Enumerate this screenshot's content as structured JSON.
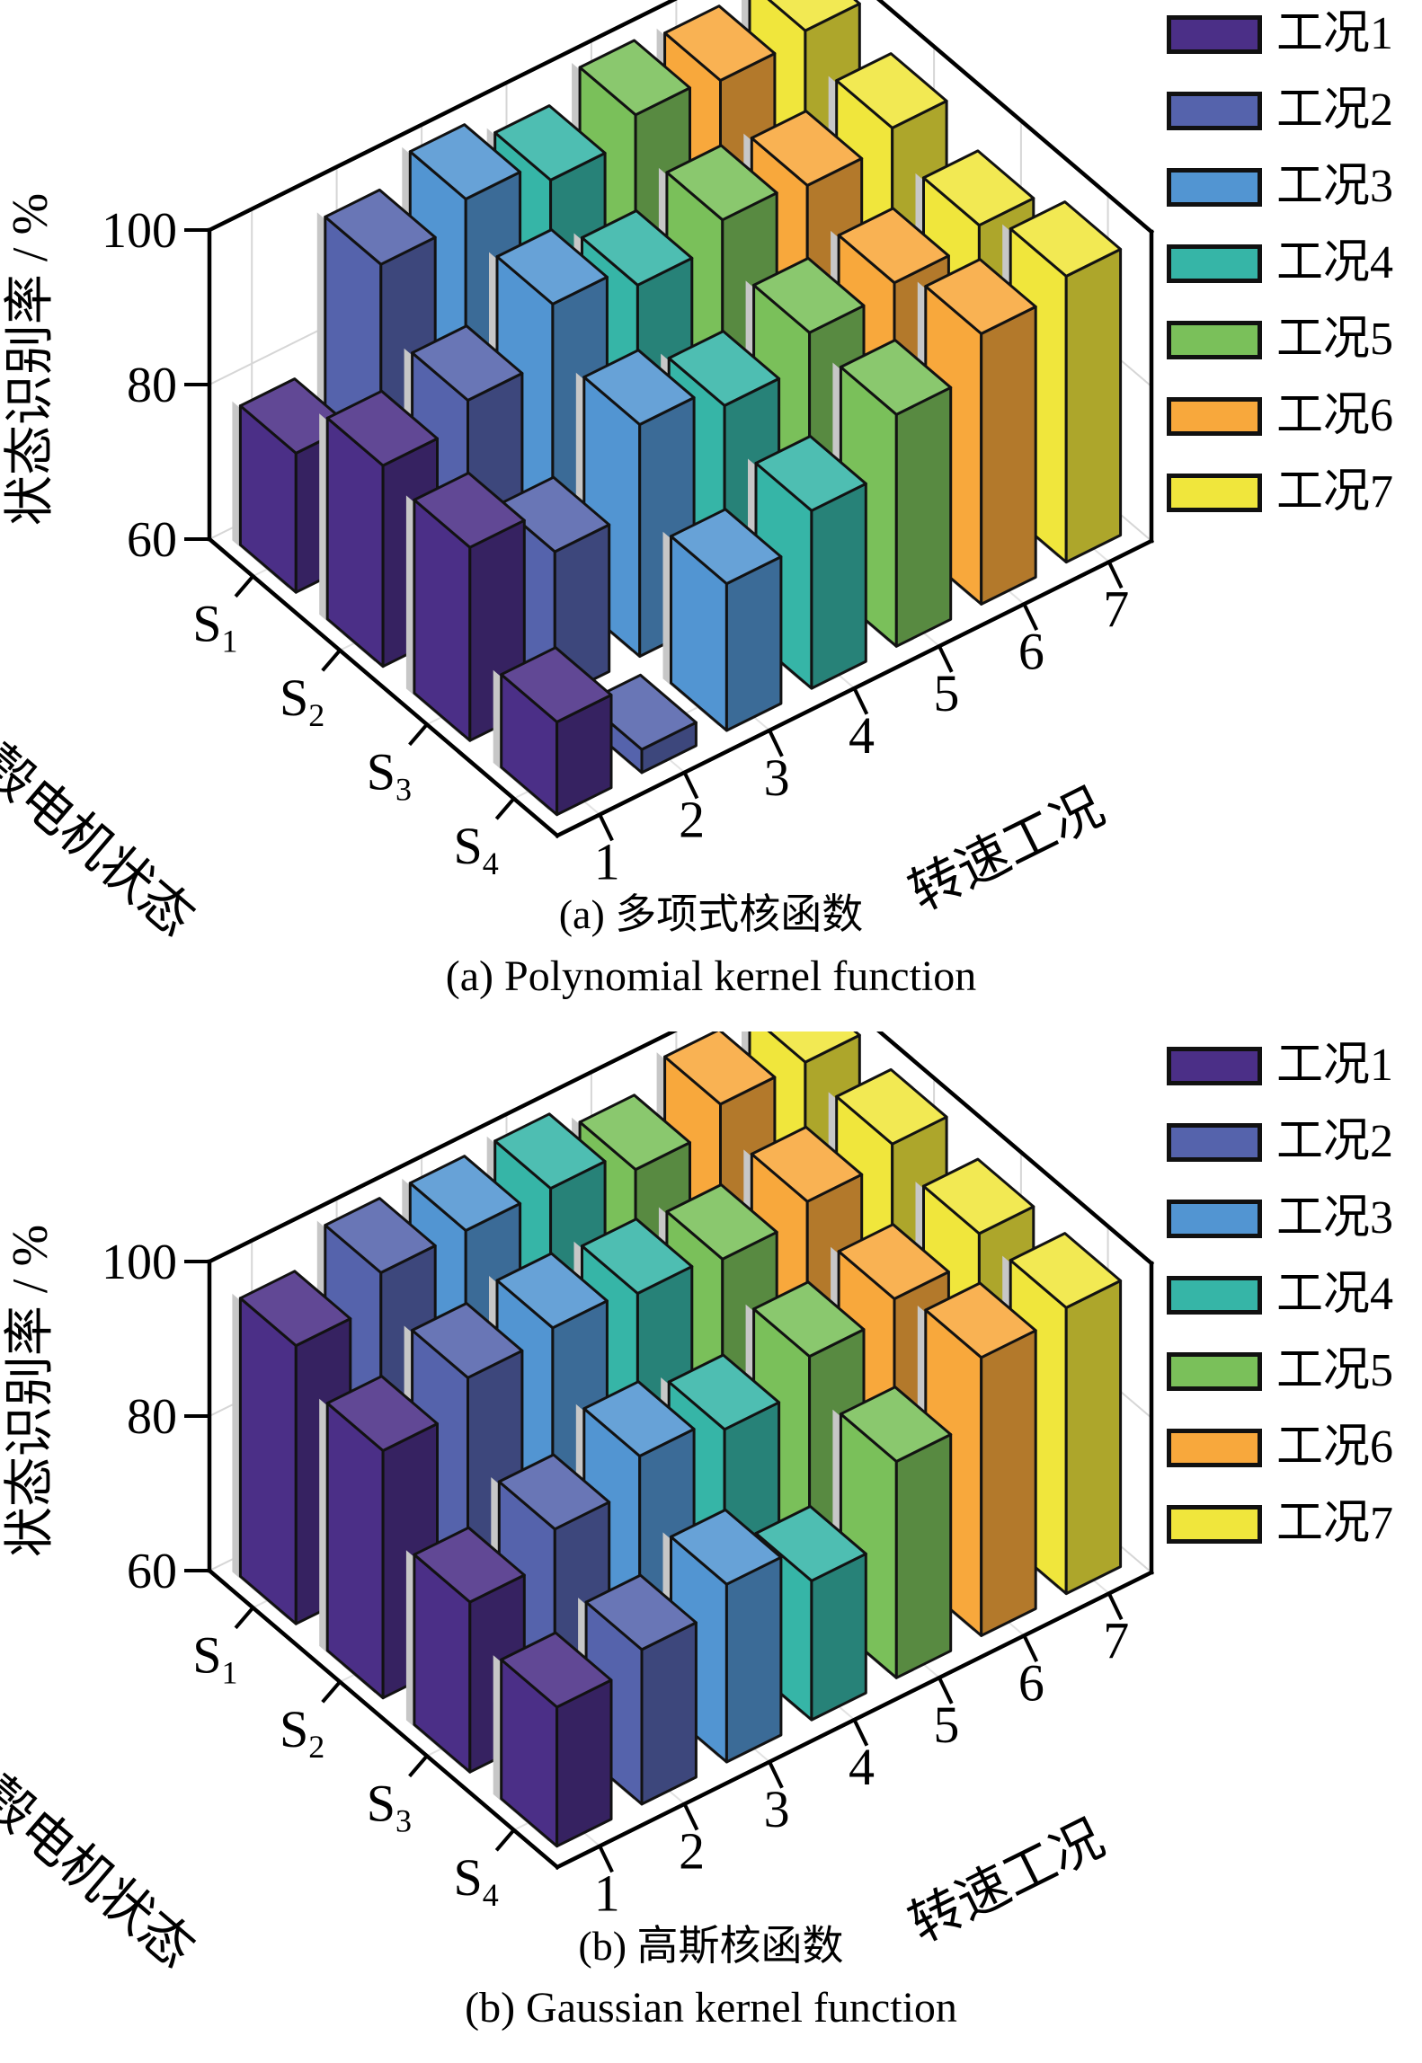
{
  "chart_data": [
    {
      "type": "bar3d",
      "caption_zh": "(a) 多项式核函数",
      "caption_en": "(a)  Polynomial kernel function",
      "zlabel": "状态识别率 / %",
      "zlim": [
        60,
        100
      ],
      "zticks": [
        "60",
        "80",
        "100"
      ],
      "xlabel": "转速工况",
      "xticks": [
        "1",
        "2",
        "3",
        "4",
        "5",
        "6",
        "7"
      ],
      "ylabel": "轮毂电机状态",
      "yticks": [
        "S1",
        "S2",
        "S3",
        "S4"
      ],
      "categories": [
        "S1",
        "S2",
        "S3",
        "S4"
      ],
      "legend_position": "right",
      "grid": true,
      "series": [
        {
          "name": "工况1",
          "color": "#4B2F87",
          "values": [
            78,
            86,
            85,
            72
          ]
        },
        {
          "name": "工况2",
          "color": "#5563AC",
          "values": [
            97,
            89,
            79,
            63
          ]
        },
        {
          "name": "工况3",
          "color": "#5295D2",
          "values": [
            100,
            96,
            90,
            79
          ]
        },
        {
          "name": "工况4",
          "color": "#36B5A7",
          "values": [
            97,
            93,
            87,
            83
          ]
        },
        {
          "name": "工况5",
          "color": "#7AC05A",
          "values": [
            100,
            96,
            91,
            90
          ]
        },
        {
          "name": "工况6",
          "color": "#F8A83C",
          "values": [
            99,
            95,
            92,
            95
          ]
        },
        {
          "name": "工况7",
          "color": "#F0E63C",
          "values": [
            100,
            97,
            94,
            97
          ]
        }
      ]
    },
    {
      "type": "bar3d",
      "caption_zh": "(b) 高斯核函数",
      "caption_en": "(b)  Gaussian kernel function",
      "zlabel": "状态识别率 / %",
      "zlim": [
        60,
        100
      ],
      "zticks": [
        "60",
        "80",
        "100"
      ],
      "xlabel": "转速工况",
      "xticks": [
        "1",
        "2",
        "3",
        "4",
        "5",
        "6",
        "7"
      ],
      "ylabel": "轮毂电机状态",
      "yticks": [
        "S1",
        "S2",
        "S3",
        "S4"
      ],
      "categories": [
        "S1",
        "S2",
        "S3",
        "S4"
      ],
      "legend_position": "right",
      "grid": true,
      "series": [
        {
          "name": "工况1",
          "color": "#4B2F87",
          "values": [
            96,
            92,
            82,
            78
          ]
        },
        {
          "name": "工况2",
          "color": "#5563AC",
          "values": [
            100,
            96,
            86,
            80
          ]
        },
        {
          "name": "工况3",
          "color": "#5295D2",
          "values": [
            100,
            97,
            90,
            83
          ]
        },
        {
          "name": "工况4",
          "color": "#36B5A7",
          "values": [
            100,
            96,
            88,
            78
          ]
        },
        {
          "name": "工况5",
          "color": "#7AC05A",
          "values": [
            97,
            95,
            92,
            88
          ]
        },
        {
          "name": "工况6",
          "color": "#F8A83C",
          "values": [
            100,
            97,
            94,
            96
          ]
        },
        {
          "name": "工况7",
          "color": "#F0E63C",
          "values": [
            100,
            99,
            97,
            97
          ]
        }
      ]
    }
  ]
}
